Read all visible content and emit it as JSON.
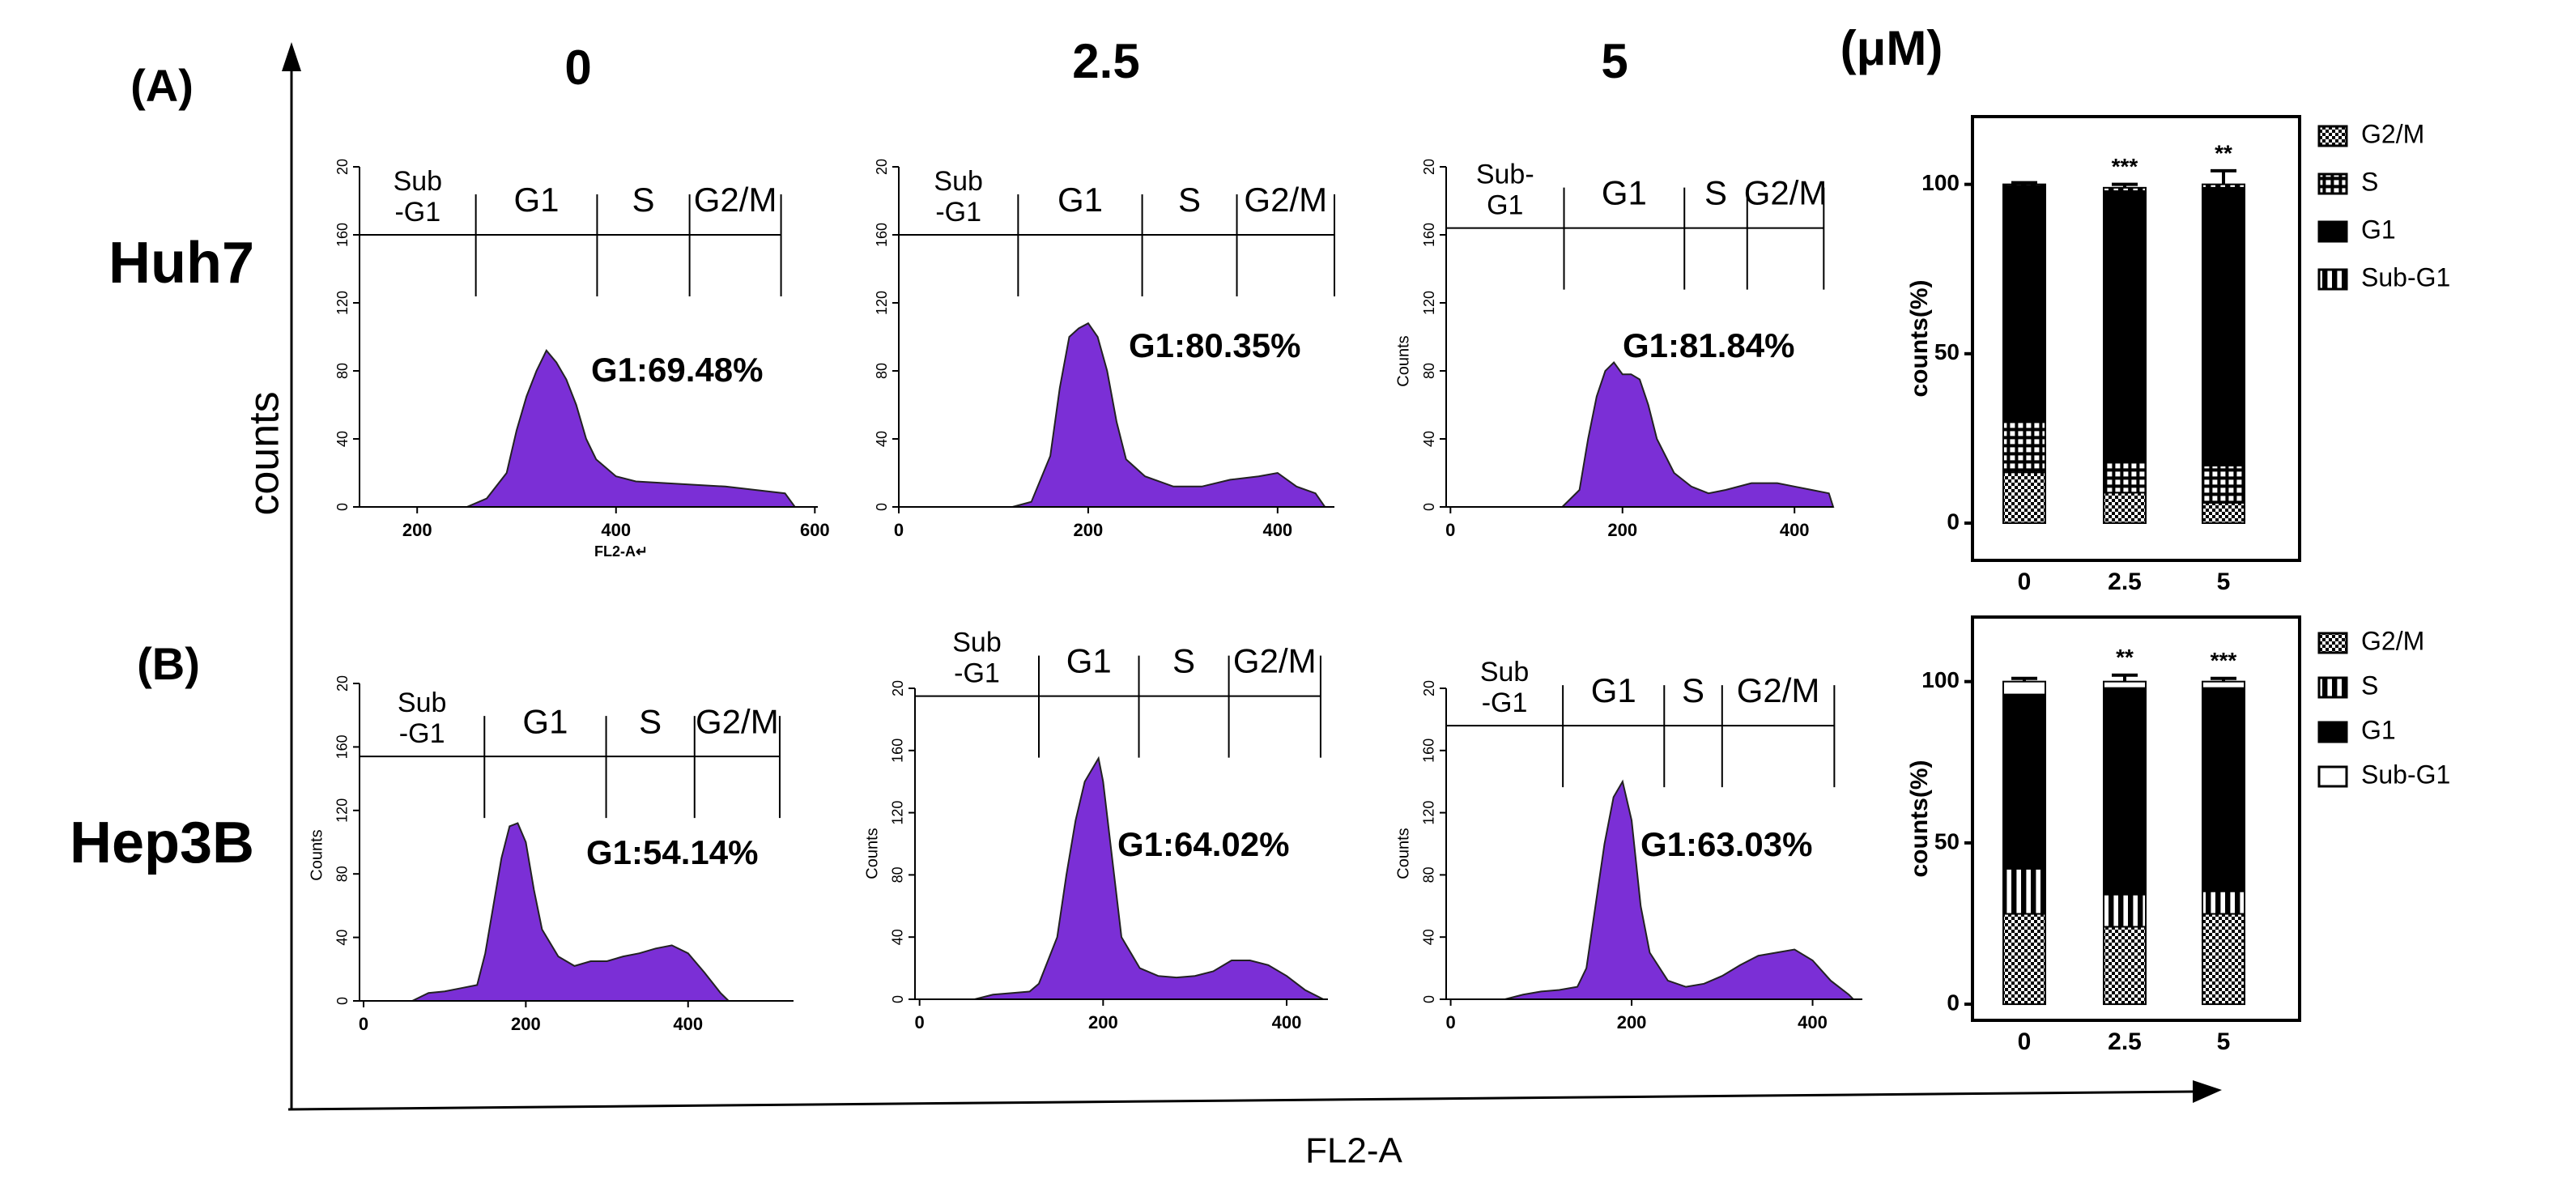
{
  "labels": {
    "panel_a": "(A)",
    "panel_b": "(B)",
    "doses": [
      "0",
      "2.5",
      "5"
    ],
    "unit": "(μM)",
    "rows": [
      "Huh7",
      "Hep3B"
    ],
    "y_axis": "counts",
    "x_axis": "FL2-A"
  },
  "chart_data": [
    {
      "type": "area",
      "color": "#7b2fd6",
      "annotation": "G1:69.48%",
      "xlabel": "FL2-A↵",
      "x": [
        250,
        270,
        290,
        300,
        310,
        320,
        330,
        340,
        350,
        360,
        370,
        380,
        400,
        420,
        450,
        480,
        510,
        540,
        570,
        580
      ],
      "values": [
        0,
        5,
        20,
        45,
        65,
        80,
        92,
        85,
        75,
        60,
        40,
        28,
        18,
        15,
        14,
        13,
        12,
        10,
        8,
        0
      ],
      "xlim": [
        142,
        603
      ],
      "ylim": [
        0,
        200
      ],
      "xticks": [
        200,
        400,
        600
      ],
      "yticks": [
        0,
        40,
        80,
        120,
        160,
        {
          "value": 200,
          "label": "20"
        }
      ],
      "gate_level": 160,
      "gate_edges": [
        259,
        381,
        474,
        566
      ],
      "gate_labels": [
        [
          "Sub",
          "-G1"
        ],
        [
          "G1"
        ],
        [
          "S"
        ],
        [
          "G2/M"
        ]
      ]
    },
    {
      "type": "area",
      "color": "#7b2fd6",
      "annotation": "G1:80.35%",
      "x": [
        120,
        140,
        160,
        170,
        180,
        190,
        200,
        210,
        220,
        230,
        240,
        260,
        290,
        320,
        350,
        380,
        400,
        420,
        440,
        450
      ],
      "values": [
        0,
        3,
        30,
        70,
        100,
        105,
        108,
        100,
        80,
        50,
        28,
        18,
        12,
        12,
        16,
        18,
        20,
        12,
        8,
        0
      ],
      "xlim": [
        0,
        460
      ],
      "ylim": [
        0,
        200
      ],
      "xticks": [
        0,
        200,
        400
      ],
      "yticks": [
        0,
        40,
        80,
        120,
        160,
        {
          "value": 200,
          "label": "20"
        }
      ],
      "gate_level": 160,
      "gate_edges": [
        126,
        257,
        357,
        460
      ],
      "gate_labels": [
        [
          "Sub",
          "-G1"
        ],
        [
          "G1"
        ],
        [
          "S"
        ],
        [
          "G2/M"
        ]
      ]
    },
    {
      "type": "area",
      "color": "#7b2fd6",
      "annotation": "G1:81.84%",
      "ylabel": "Counts",
      "x": [
        130,
        150,
        160,
        170,
        180,
        190,
        200,
        210,
        220,
        230,
        240,
        260,
        280,
        300,
        320,
        350,
        380,
        400,
        420,
        440,
        445
      ],
      "values": [
        0,
        10,
        40,
        65,
        80,
        85,
        78,
        78,
        75,
        60,
        40,
        20,
        12,
        8,
        10,
        14,
        14,
        12,
        10,
        8,
        0
      ],
      "xlim": [
        -5,
        445
      ],
      "ylim": [
        0,
        200
      ],
      "xticks": [
        0,
        200,
        400
      ],
      "yticks": [
        0,
        40,
        80,
        120,
        160,
        {
          "value": 200,
          "label": "20"
        }
      ],
      "gate_level": 164,
      "gate_edges": [
        132,
        272,
        345,
        434
      ],
      "gate_labels": [
        [
          "Sub-",
          "G1"
        ],
        [
          "G1"
        ],
        [
          "S"
        ],
        [
          "G2/M"
        ]
      ]
    },
    {
      "type": "area",
      "color": "#7b2fd6",
      "annotation": "G1:54.14%",
      "ylabel": "Counts",
      "x": [
        60,
        80,
        100,
        120,
        140,
        150,
        160,
        170,
        180,
        190,
        200,
        210,
        220,
        240,
        260,
        280,
        300,
        320,
        340,
        360,
        380,
        400,
        420,
        440,
        450
      ],
      "values": [
        0,
        5,
        6,
        8,
        10,
        30,
        60,
        90,
        110,
        112,
        100,
        70,
        45,
        28,
        22,
        25,
        25,
        28,
        30,
        33,
        35,
        30,
        18,
        5,
        0
      ],
      "xlim": [
        -5,
        530
      ],
      "ylim": [
        0,
        200
      ],
      "xticks": [
        0,
        200,
        400
      ],
      "yticks": [
        0,
        40,
        80,
        120,
        160,
        {
          "value": 200,
          "label": "20"
        }
      ],
      "gate_level": 154,
      "gate_edges": [
        149,
        299,
        408,
        513
      ],
      "gate_labels": [
        [
          "Sub",
          "-G1"
        ],
        [
          "G1"
        ],
        [
          "S"
        ],
        [
          "G2/M"
        ]
      ]
    },
    {
      "type": "area",
      "color": "#7b2fd6",
      "annotation": "G1:64.02%",
      "ylabel": "Counts",
      "x": [
        60,
        80,
        100,
        120,
        130,
        150,
        160,
        170,
        180,
        190,
        195,
        200,
        210,
        220,
        240,
        260,
        280,
        300,
        320,
        340,
        360,
        380,
        400,
        420,
        440
      ],
      "values": [
        0,
        3,
        4,
        5,
        10,
        40,
        80,
        115,
        140,
        150,
        155,
        140,
        90,
        40,
        20,
        15,
        14,
        15,
        18,
        25,
        25,
        22,
        15,
        6,
        0
      ],
      "xlim": [
        -5,
        445
      ],
      "ylim": [
        0,
        200
      ],
      "xticks": [
        0,
        200,
        400
      ],
      "yticks": [
        0,
        40,
        80,
        120,
        160,
        {
          "value": 200,
          "label": "20"
        }
      ],
      "gate_level": 195,
      "gate_edges": [
        130,
        239,
        337,
        437
      ],
      "gate_labels": [
        [
          "Sub",
          "-G1"
        ],
        [
          "G1"
        ],
        [
          "S"
        ],
        [
          "G2/M"
        ]
      ]
    },
    {
      "type": "area",
      "color": "#7b2fd6",
      "annotation": "G1:63.03%",
      "ylabel": "Counts",
      "x": [
        60,
        80,
        100,
        120,
        140,
        150,
        160,
        170,
        180,
        190,
        200,
        210,
        220,
        240,
        260,
        280,
        300,
        320,
        340,
        360,
        380,
        400,
        420,
        440,
        445
      ],
      "values": [
        0,
        3,
        5,
        6,
        8,
        20,
        60,
        100,
        130,
        140,
        115,
        60,
        30,
        12,
        8,
        10,
        15,
        22,
        28,
        30,
        32,
        25,
        12,
        3,
        0
      ],
      "xlim": [
        -5,
        455
      ],
      "ylim": [
        0,
        200
      ],
      "xticks": [
        0,
        200,
        400
      ],
      "yticks": [
        0,
        40,
        80,
        120,
        160,
        {
          "value": 200,
          "label": "20"
        }
      ],
      "gate_level": 176,
      "gate_edges": [
        124,
        236,
        300,
        424
      ],
      "gate_labels": [
        [
          "Sub",
          "-G1"
        ],
        [
          "G1"
        ],
        [
          "S"
        ],
        [
          "G2/M"
        ]
      ]
    },
    {
      "type": "stacked_bar",
      "ylabel": "counts(%)",
      "categories": [
        "0",
        "2.5",
        "5"
      ],
      "series": [
        {
          "name": "G2/M",
          "pattern": "checker",
          "color": "#000000",
          "values": [
            15,
            9,
            6
          ]
        },
        {
          "name": "S",
          "pattern": "grid",
          "color": "#000000",
          "values": [
            15,
            9,
            11
          ]
        },
        {
          "name": "G1",
          "pattern": "solid",
          "color": "#000000",
          "values": [
            69.5,
            80,
            82
          ]
        },
        {
          "name": "Sub-G1",
          "pattern": "vstripe",
          "color": "#000000",
          "values": [
            0.5,
            1,
            1
          ]
        }
      ],
      "errors": [
        0.5,
        1,
        4
      ],
      "significance": [
        null,
        "***",
        "**"
      ],
      "ylim": [
        -11,
        120
      ],
      "yticks": [
        0,
        50,
        100
      ]
    },
    {
      "type": "stacked_bar",
      "ylabel": "counts(%)",
      "categories": [
        "0",
        "2.5",
        "5"
      ],
      "series": [
        {
          "name": "G2/M",
          "pattern": "checker",
          "color": "#000000",
          "values": [
            28,
            24,
            28
          ]
        },
        {
          "name": "S",
          "pattern": "vstripe",
          "color": "#000000",
          "values": [
            14,
            10,
            7
          ]
        },
        {
          "name": "G1",
          "pattern": "solid",
          "color": "#000000",
          "values": [
            54,
            64,
            63
          ]
        },
        {
          "name": "Sub-G1",
          "pattern": "solid",
          "color": "#ffffff",
          "values": [
            4,
            2,
            2
          ]
        }
      ],
      "errors": [
        1,
        2,
        1
      ],
      "significance": [
        null,
        "**",
        "***"
      ],
      "ylim": [
        -5,
        120
      ],
      "yticks": [
        0,
        50,
        100
      ]
    }
  ]
}
